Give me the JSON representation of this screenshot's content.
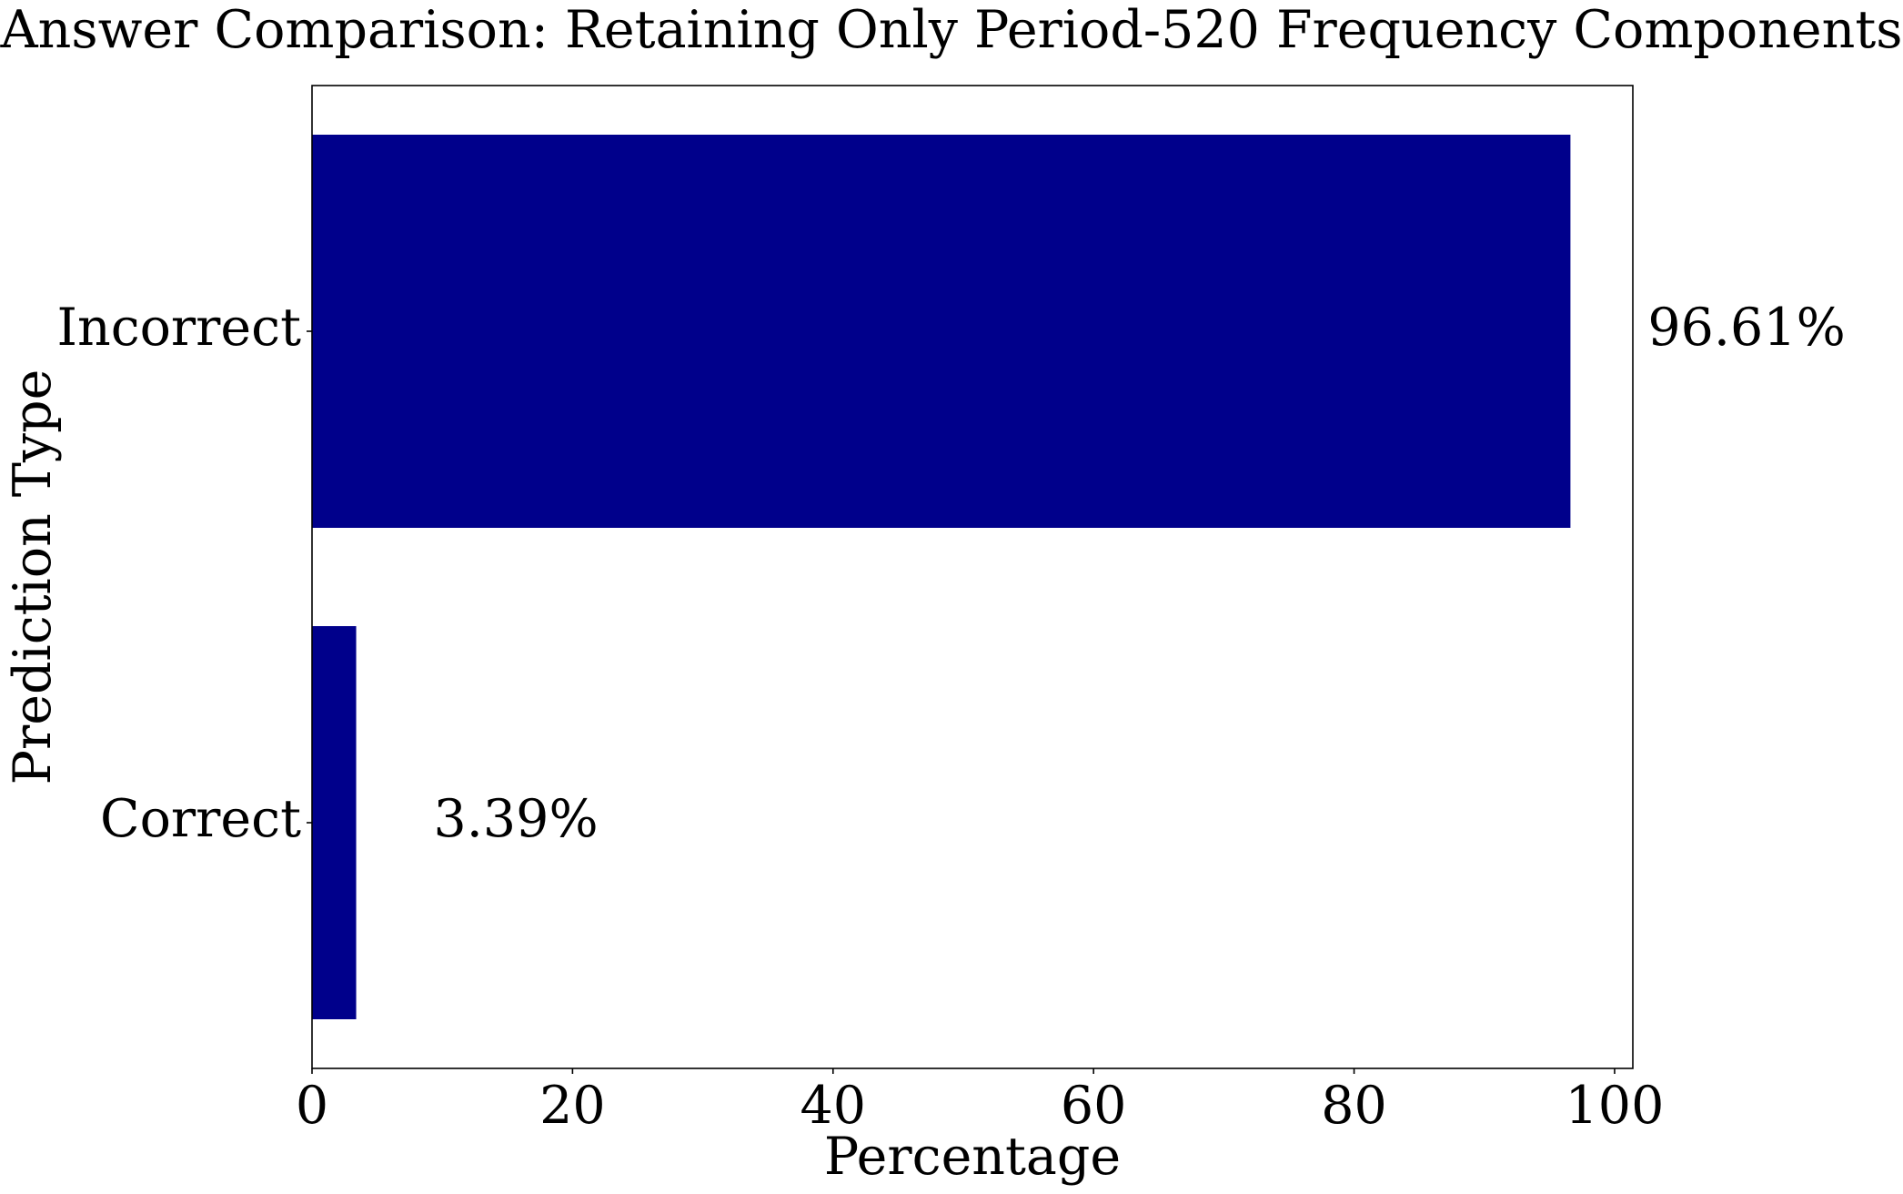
{
  "chart_data": {
    "type": "bar",
    "orientation": "horizontal",
    "title": "Answer Comparison: Retaining Only Period-520 Frequency Components",
    "xlabel": "Percentage",
    "ylabel": "Prediction Type",
    "categories": [
      "Correct",
      "Incorrect"
    ],
    "values": [
      3.39,
      96.61
    ],
    "value_labels": [
      "3.39%",
      "96.61%"
    ],
    "xlim": [
      0,
      101.4
    ],
    "xticks": [
      0,
      20,
      40,
      60,
      80,
      100
    ],
    "xtick_labels": [
      "0",
      "20",
      "40",
      "60",
      "80",
      "100"
    ],
    "grid": false,
    "legend": "none",
    "bar_color": "#00008b"
  }
}
